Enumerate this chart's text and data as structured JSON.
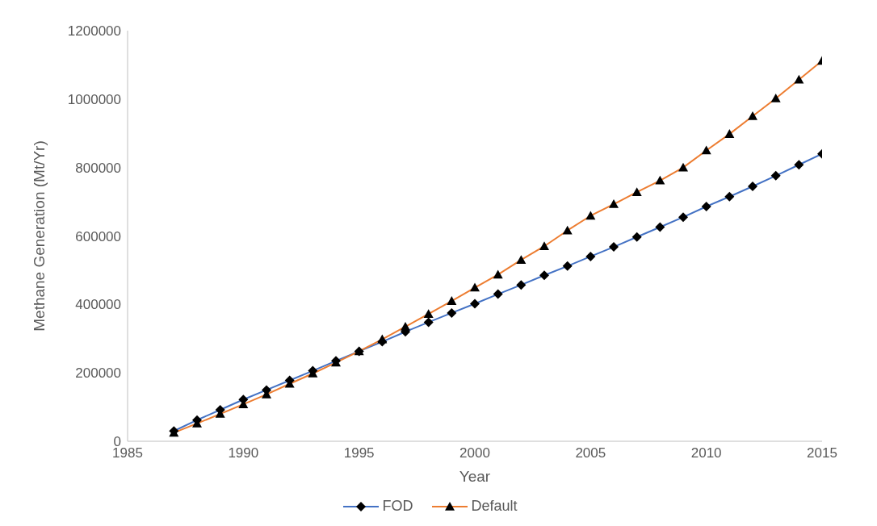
{
  "chart_data": {
    "type": "line",
    "xlabel": "Year",
    "ylabel": "Methane Generation (Mt/Yr)",
    "x": [
      1987,
      1988,
      1989,
      1990,
      1991,
      1992,
      1993,
      1994,
      1995,
      1996,
      1997,
      1998,
      1999,
      2000,
      2001,
      2002,
      2003,
      2004,
      2005,
      2006,
      2007,
      2008,
      2009,
      2010,
      2011,
      2012,
      2013,
      2014,
      2015
    ],
    "series": [
      {
        "name": "FOD",
        "color": "#4472c4",
        "marker": "diamond",
        "values": [
          30000,
          62000,
          92000,
          122000,
          150000,
          178000,
          206000,
          235000,
          263000,
          291000,
          320000,
          348000,
          375000,
          402000,
          430000,
          457000,
          485000,
          512000,
          540000,
          568000,
          597000,
          626000,
          655000,
          686000,
          715000,
          745000,
          776000,
          808000,
          840000
        ]
      },
      {
        "name": "Default",
        "color": "#ed7d31",
        "marker": "triangle",
        "values": [
          25000,
          52000,
          80000,
          108000,
          137000,
          168000,
          198000,
          230000,
          263000,
          298000,
          335000,
          372000,
          410000,
          449000,
          487000,
          530000,
          570000,
          616000,
          659000,
          693000,
          728000,
          762000,
          800000,
          850000,
          898000,
          950000,
          1002000,
          1057000,
          1112000
        ]
      }
    ],
    "xlim": [
      1985,
      2015
    ],
    "xticks": [
      1985,
      1990,
      1995,
      2000,
      2005,
      2010,
      2015
    ],
    "ylim": [
      0,
      1200000
    ],
    "yticks": [
      0,
      200000,
      400000,
      600000,
      800000,
      1000000,
      1200000
    ],
    "grid": false,
    "legend": "bottom",
    "line_style": "solid"
  }
}
